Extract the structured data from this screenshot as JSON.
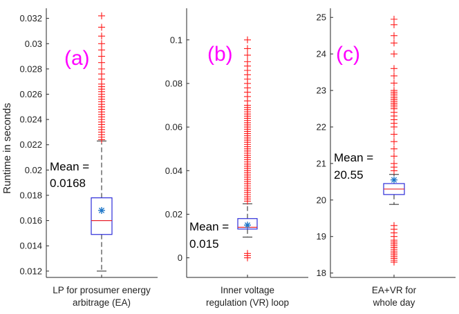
{
  "chart_data": [
    {
      "type": "boxplot",
      "panel_label": "(a)",
      "ylabel": "Runtime in seconds",
      "xlabel_lines": [
        "LP for prosumer energy",
        "arbitrage (EA)"
      ],
      "ylim": [
        0.0115,
        0.0328
      ],
      "yticks": [
        0.012,
        0.014,
        0.016,
        0.018,
        0.02,
        0.022,
        0.024,
        0.026,
        0.028,
        0.03,
        0.032
      ],
      "ytick_labels": [
        "0.012",
        "0.014",
        "0.016",
        "0.018",
        "0.02",
        "0.022",
        "0.024",
        "0.026",
        "0.028",
        "0.03",
        "0.032"
      ],
      "box": {
        "q1": 0.0149,
        "median": 0.016,
        "q3": 0.0178,
        "whisker_low": 0.012,
        "whisker_high": 0.0223
      },
      "mean": 0.0168,
      "outliers": [
        0.0224,
        0.0226,
        0.0228,
        0.023,
        0.0232,
        0.0234,
        0.0236,
        0.0238,
        0.024,
        0.0242,
        0.0244,
        0.0246,
        0.0248,
        0.025,
        0.0252,
        0.0254,
        0.0256,
        0.0258,
        0.026,
        0.0262,
        0.0264,
        0.0266,
        0.0268,
        0.0272,
        0.0276,
        0.028,
        0.0285,
        0.029,
        0.0295,
        0.03,
        0.0306,
        0.0313,
        0.0322
      ],
      "annotation_lines": [
        "Mean =",
        "0.0168"
      ]
    },
    {
      "type": "boxplot",
      "panel_label": "(b)",
      "xlabel_lines": [
        "Inner voltage",
        "regulation (VR) loop"
      ],
      "ylim": [
        -0.009,
        0.1145
      ],
      "yticks": [
        0,
        0.02,
        0.04,
        0.06,
        0.08,
        0.1
      ],
      "ytick_labels": [
        "0",
        "0.02",
        "0.04",
        "0.06",
        "0.08",
        "0.1"
      ],
      "box": {
        "q1": 0.0132,
        "median": 0.014,
        "q3": 0.018,
        "whisker_low": 0.0095,
        "whisker_high": 0.0248
      },
      "mean": 0.015,
      "outliers": [
        0,
        0.001,
        0.002,
        0.026,
        0.027,
        0.028,
        0.029,
        0.03,
        0.031,
        0.032,
        0.033,
        0.034,
        0.035,
        0.036,
        0.037,
        0.038,
        0.039,
        0.04,
        0.041,
        0.042,
        0.043,
        0.044,
        0.045,
        0.046,
        0.047,
        0.048,
        0.049,
        0.05,
        0.051,
        0.052,
        0.053,
        0.054,
        0.055,
        0.056,
        0.057,
        0.058,
        0.059,
        0.06,
        0.061,
        0.062,
        0.063,
        0.064,
        0.065,
        0.066,
        0.067,
        0.068,
        0.069,
        0.07,
        0.072,
        0.074,
        0.076,
        0.078,
        0.08,
        0.082,
        0.084,
        0.086,
        0.088,
        0.09,
        0.093,
        0.096,
        0.1
      ],
      "annotation_lines": [
        "Mean =",
        "0.015"
      ]
    },
    {
      "type": "boxplot",
      "panel_label": "(c)",
      "xlabel_lines": [
        "EA+VR for",
        "whole day"
      ],
      "ylim": [
        17.88,
        25.25
      ],
      "yticks": [
        18,
        19,
        20,
        21,
        22,
        23,
        24,
        25
      ],
      "ytick_labels": [
        "18",
        "19",
        "20",
        "21",
        "22",
        "23",
        "24",
        "25"
      ],
      "box": {
        "q1": 20.15,
        "median": 20.3,
        "q3": 20.45,
        "whisker_low": 19.88,
        "whisker_high": 20.7
      },
      "mean": 20.55,
      "outliers": [
        18.3,
        18.35,
        18.4,
        18.45,
        18.5,
        18.55,
        18.6,
        18.65,
        18.7,
        18.75,
        18.8,
        18.85,
        18.9,
        19.0,
        19.1,
        19.2,
        19.3,
        20.8,
        20.9,
        21.0,
        21.2,
        21.4,
        21.6,
        21.8,
        22.0,
        22.1,
        22.2,
        22.3,
        22.4,
        22.5,
        22.55,
        22.6,
        22.65,
        22.7,
        22.75,
        22.8,
        22.85,
        22.9,
        22.95,
        23.0,
        23.2,
        23.4,
        23.6,
        24.0,
        24.3,
        24.5,
        24.8,
        24.95
      ],
      "annotation_lines": [
        "Mean =",
        "20.55"
      ]
    }
  ]
}
